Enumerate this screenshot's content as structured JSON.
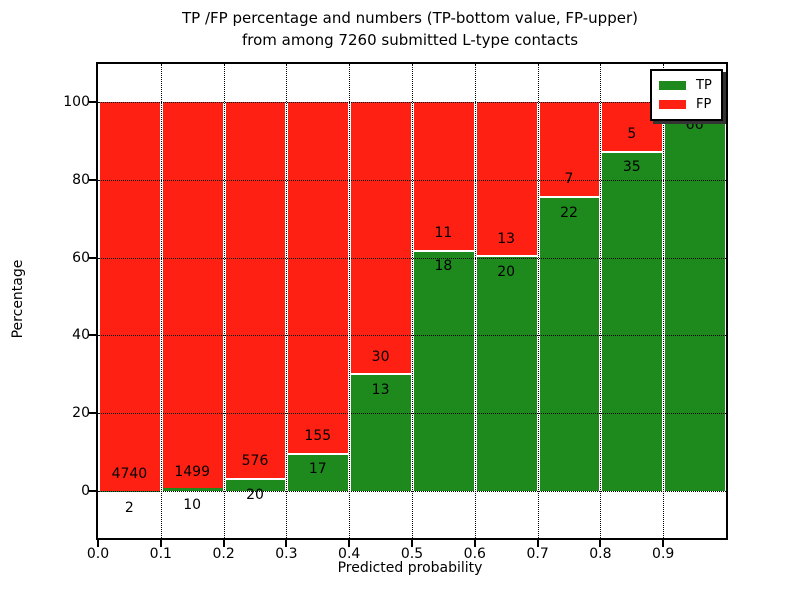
{
  "title": {
    "line1": "TP /FP percentage and numbers (TP-bottom value, FP-upper)",
    "line2": "from among 7260 submitted L-type contacts"
  },
  "axes": {
    "xlabel": "Predicted probability",
    "ylabel": "Percentage",
    "x_ticks": [
      "0.0",
      "0.1",
      "0.2",
      "0.3",
      "0.4",
      "0.5",
      "0.6",
      "0.7",
      "0.8",
      "0.9"
    ],
    "y_ticks": [
      "0",
      "20",
      "40",
      "60",
      "80",
      "100"
    ],
    "y_tick_values": [
      0,
      20,
      40,
      60,
      80,
      100
    ],
    "grid": "dotted-black"
  },
  "legend": {
    "position": "upper-right",
    "items": [
      {
        "label": "TP",
        "color": "#1e8a1e"
      },
      {
        "label": "FP",
        "color": "#ff2014"
      }
    ]
  },
  "chart_data": {
    "type": "bar",
    "stacked": true,
    "title": "TP /FP percentage and numbers (TP-bottom value, FP-upper) from among 7260 submitted L-type contacts",
    "xlabel": "Predicted probability",
    "ylabel": "Percentage",
    "xlim": [
      0.0,
      1.0
    ],
    "ylim": [
      -12,
      110
    ],
    "bin_width": 0.1,
    "bin_starts": [
      0.0,
      0.1,
      0.2,
      0.3,
      0.4,
      0.5,
      0.6,
      0.7,
      0.8,
      0.9
    ],
    "series": [
      {
        "name": "TP",
        "color": "#1e8a1e",
        "counts": [
          2,
          10,
          20,
          17,
          13,
          18,
          20,
          22,
          35,
          66
        ],
        "pct": [
          0.04,
          0.66,
          3.36,
          9.88,
          30.23,
          62.07,
          60.61,
          75.86,
          87.5,
          98.51
        ]
      },
      {
        "name": "FP",
        "color": "#ff2014",
        "counts": [
          4740,
          1499,
          576,
          155,
          30,
          11,
          13,
          7,
          5,
          null
        ],
        "pct": [
          99.96,
          99.34,
          96.64,
          90.12,
          69.77,
          37.93,
          39.39,
          24.14,
          12.5,
          1.49
        ]
      }
    ],
    "bar_labels": {
      "fp_upper": [
        "4740",
        "1499",
        "576",
        "155",
        "30",
        "11",
        "13",
        "7",
        "5",
        ""
      ],
      "tp_lower": [
        "2",
        "10",
        "20",
        "17",
        "13",
        "18",
        "20",
        "22",
        "35",
        "66"
      ]
    },
    "total_submitted": 7260
  }
}
